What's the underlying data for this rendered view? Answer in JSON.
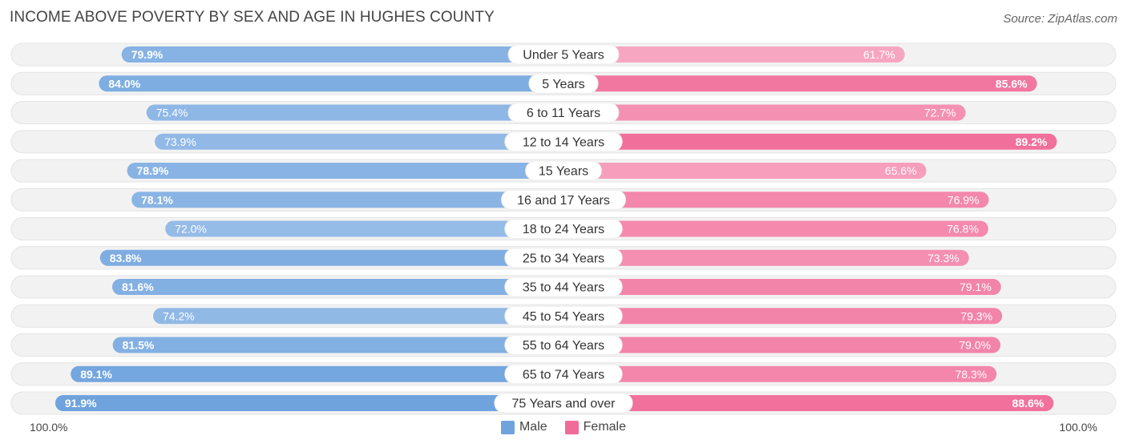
{
  "header": {
    "title": "INCOME ABOVE POVERTY BY SEX AND AGE IN HUGHES COUNTY",
    "source": "Source: ZipAtlas.com"
  },
  "axis": {
    "left_label": "100.0%",
    "right_label": "100.0%"
  },
  "legend": {
    "male_label": "Male",
    "female_label": "Female"
  },
  "colors": {
    "male_strong": "#6fa3de",
    "male_light": "#a9c8ec",
    "female_strong": "#f06b97",
    "female_light": "#f7a6c2",
    "track": "#f2f2f2"
  },
  "chart_data": {
    "type": "bar",
    "orientation": "horizontal-diverging",
    "title": "INCOME ABOVE POVERTY BY SEX AND AGE IN HUGHES COUNTY",
    "xlim": [
      0,
      100
    ],
    "categories": [
      "Under 5 Years",
      "5 Years",
      "6 to 11 Years",
      "12 to 14 Years",
      "15 Years",
      "16 and 17 Years",
      "18 to 24 Years",
      "25 to 34 Years",
      "35 to 44 Years",
      "45 to 54 Years",
      "55 to 64 Years",
      "65 to 74 Years",
      "75 Years and over"
    ],
    "series": [
      {
        "name": "Male",
        "values": [
          79.9,
          84.0,
          75.4,
          73.9,
          78.9,
          78.1,
          72.0,
          83.8,
          81.6,
          74.2,
          81.5,
          89.1,
          91.9
        ],
        "labels": [
          "79.9%",
          "84.0%",
          "75.4%",
          "73.9%",
          "78.9%",
          "78.1%",
          "72.0%",
          "83.8%",
          "81.6%",
          "74.2%",
          "81.5%",
          "89.1%",
          "91.9%"
        ]
      },
      {
        "name": "Female",
        "values": [
          61.7,
          85.6,
          72.7,
          89.2,
          65.6,
          76.9,
          76.8,
          73.3,
          79.1,
          79.3,
          79.0,
          78.3,
          88.6
        ],
        "labels": [
          "61.7%",
          "85.6%",
          "72.7%",
          "89.2%",
          "65.6%",
          "76.9%",
          "76.8%",
          "73.3%",
          "79.1%",
          "79.3%",
          "79.0%",
          "78.3%",
          "88.6%"
        ]
      }
    ]
  }
}
